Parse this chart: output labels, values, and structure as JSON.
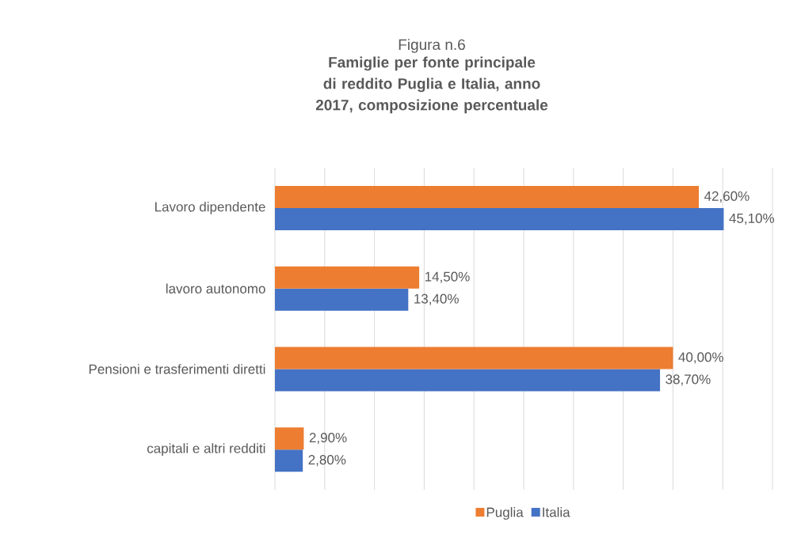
{
  "chart_data": {
    "type": "bar",
    "orientation": "horizontal",
    "title": "Figura n.6",
    "subtitle": "Famiglie per fonte principale di reddito Puglia e Italia, anno 2017, composizione percentuale",
    "categories": [
      "Lavoro dipendente",
      "lavoro autonomo",
      "Pensioni e trasferimenti diretti",
      "capitali e altri redditi"
    ],
    "series": [
      {
        "name": "Puglia",
        "color": "#ed7d31",
        "values": [
          42.6,
          14.5,
          40.0,
          2.9
        ],
        "value_labels": [
          "42,60%",
          "14,50%",
          "40,00%",
          "2,90%"
        ]
      },
      {
        "name": "Italia",
        "color": "#4472c4",
        "values": [
          45.1,
          13.4,
          38.7,
          2.8
        ],
        "value_labels": [
          "45,10%",
          "13,40%",
          "38,70%",
          "2,80%"
        ]
      }
    ],
    "xlim": [
      0,
      50
    ],
    "xticks": [
      {
        "value": 0,
        "label": null
      },
      {
        "value": 5,
        "label": null
      },
      {
        "value": 10,
        "label": null
      },
      {
        "value": 15,
        "label": null
      },
      {
        "value": 20,
        "label": null
      },
      {
        "value": 25,
        "label": null
      },
      {
        "value": 30,
        "label": null
      },
      {
        "value": 35,
        "label": null
      },
      {
        "value": 40,
        "label": null
      },
      {
        "value": 45,
        "label": null
      },
      {
        "value": 50,
        "label": null
      }
    ],
    "grid": "x",
    "legend": "bottom",
    "tick_labels": "y"
  }
}
